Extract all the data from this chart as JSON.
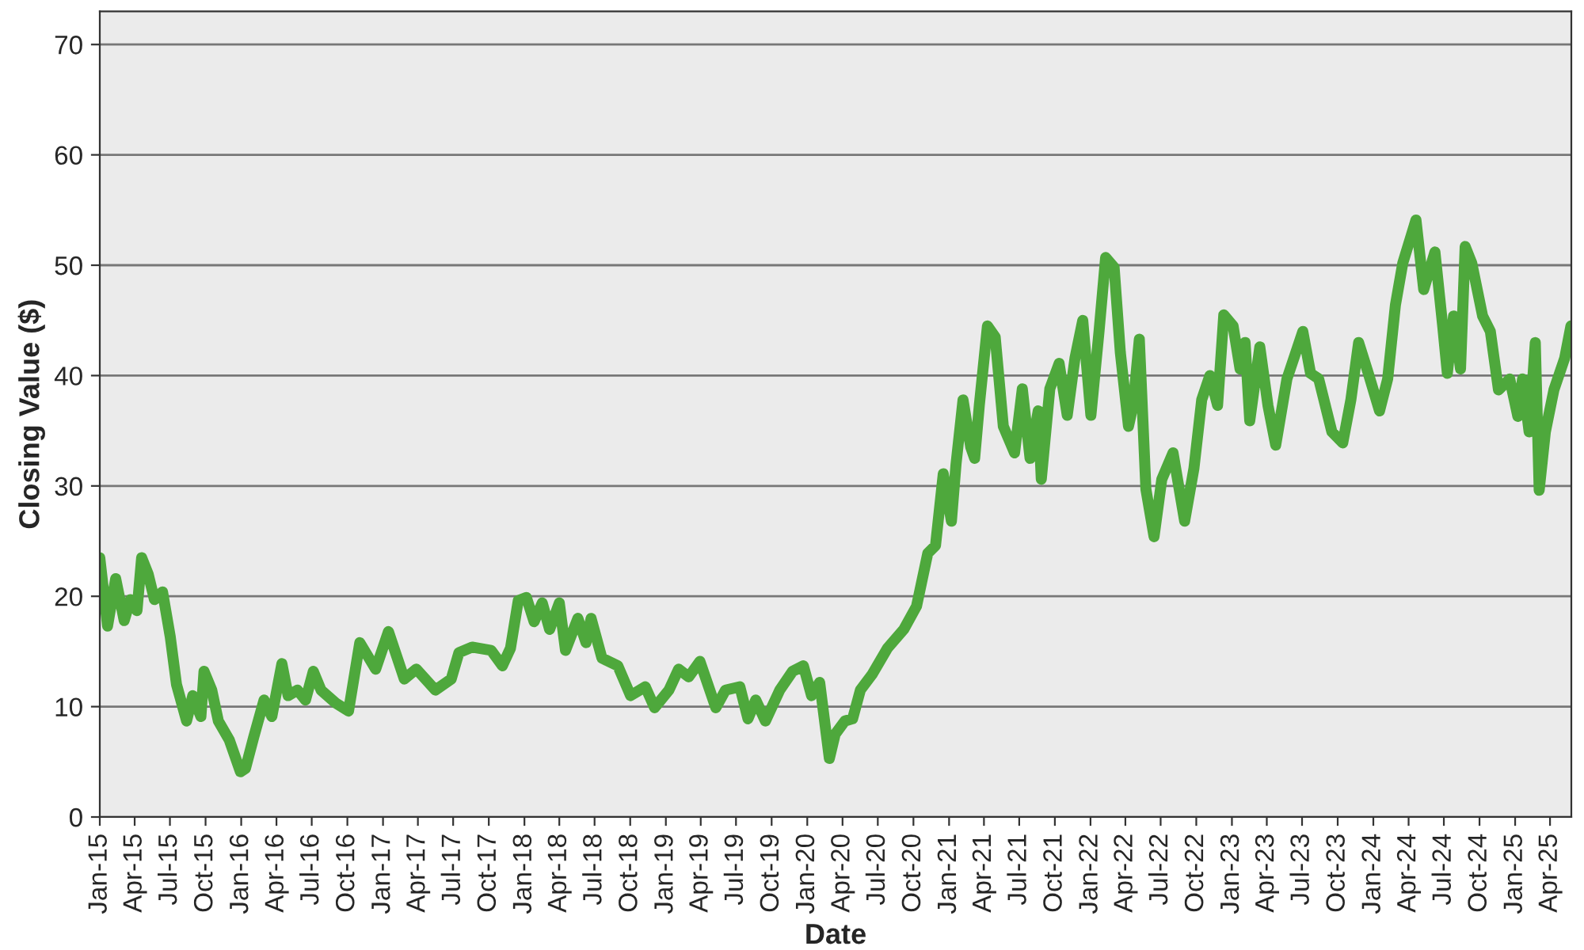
{
  "chart_data": {
    "type": "line",
    "xlabel": "Date",
    "ylabel": "Closing Value ($)",
    "x": [
      "2015-01-01",
      "2015-01-21",
      "2015-02-11",
      "2015-03-05",
      "2015-03-21",
      "2015-04-07",
      "2015-04-19",
      "2015-05-06",
      "2015-05-22",
      "2015-06-12",
      "2015-07-02",
      "2015-07-18",
      "2015-08-13",
      "2015-08-29",
      "2015-09-19",
      "2015-09-27",
      "2015-10-17",
      "2015-11-03",
      "2015-12-01",
      "2015-12-30",
      "2016-01-12",
      "2016-02-02",
      "2016-02-29",
      "2016-03-20",
      "2016-04-15",
      "2016-05-01",
      "2016-05-25",
      "2016-06-15",
      "2016-07-05",
      "2016-07-25",
      "2016-09-02",
      "2016-10-04",
      "2016-11-02",
      "2016-12-13",
      "2017-01-15",
      "2017-02-25",
      "2017-03-28",
      "2017-05-16",
      "2017-06-26",
      "2017-07-16",
      "2017-08-19",
      "2017-10-07",
      "2017-11-05",
      "2017-11-26",
      "2017-12-16",
      "2018-01-06",
      "2018-01-26",
      "2018-02-16",
      "2018-03-07",
      "2018-04-01",
      "2018-04-17",
      "2018-05-19",
      "2018-06-09",
      "2018-06-22",
      "2018-07-20",
      "2018-08-30",
      "2018-10-02",
      "2018-11-09",
      "2018-12-03",
      "2019-01-09",
      "2019-02-03",
      "2019-03-01",
      "2019-03-30",
      "2019-05-10",
      "2019-06-04",
      "2019-07-11",
      "2019-08-01",
      "2019-08-21",
      "2019-09-15",
      "2019-10-22",
      "2019-11-24",
      "2019-12-22",
      "2020-01-12",
      "2020-02-02",
      "2020-02-27",
      "2020-03-13",
      "2020-04-07",
      "2020-04-27",
      "2020-05-17",
      "2020-06-16",
      "2020-07-26",
      "2020-09-06",
      "2020-10-09",
      "2020-11-07",
      "2020-11-27",
      "2020-12-17",
      "2021-01-07",
      "2021-01-19",
      "2021-02-06",
      "2021-02-26",
      "2021-03-08",
      "2021-03-20",
      "2021-04-10",
      "2021-04-30",
      "2021-05-21",
      "2021-06-19",
      "2021-07-09",
      "2021-07-29",
      "2021-08-19",
      "2021-08-27",
      "2021-09-18",
      "2021-10-12",
      "2021-11-02",
      "2021-11-22",
      "2021-12-12",
      "2022-01-02",
      "2022-01-23",
      "2022-02-09",
      "2022-03-03",
      "2022-03-19",
      "2022-04-09",
      "2022-04-21",
      "2022-05-07",
      "2022-05-24",
      "2022-06-14",
      "2022-07-04",
      "2022-08-02",
      "2022-09-01",
      "2022-09-25",
      "2022-10-15",
      "2022-11-05",
      "2022-11-25",
      "2022-12-11",
      "2023-01-04",
      "2023-01-22",
      "2023-02-04",
      "2023-02-16",
      "2023-03-14",
      "2023-04-04",
      "2023-04-24",
      "2023-05-23",
      "2023-07-03",
      "2023-07-23",
      "2023-08-13",
      "2023-09-16",
      "2023-10-14",
      "2023-11-04",
      "2023-11-24",
      "2023-12-19",
      "2024-01-17",
      "2024-02-07",
      "2024-02-27",
      "2024-03-17",
      "2024-04-20",
      "2024-05-10",
      "2024-06-08",
      "2024-06-28",
      "2024-07-10",
      "2024-07-26",
      "2024-08-13",
      "2024-08-25",
      "2024-09-11",
      "2024-10-09",
      "2024-10-29",
      "2024-11-19",
      "2024-12-18",
      "2025-01-08",
      "2025-01-20",
      "2025-02-06",
      "2025-02-22",
      "2025-03-04",
      "2025-03-20",
      "2025-04-11",
      "2025-05-09",
      "2025-05-25"
    ],
    "series": [
      {
        "color": "#4ea83c",
        "values": [
          23.5,
          17.3,
          21.6,
          17.8,
          19.7,
          18.7,
          23.5,
          22,
          19.7,
          20.4,
          16.3,
          12,
          8.7,
          11,
          9.1,
          13.2,
          11.5,
          8.7,
          7,
          4.1,
          4.4,
          7.2,
          10.6,
          9.1,
          13.9,
          11,
          11.5,
          10.6,
          13.2,
          11.5,
          10.3,
          9.6,
          15.8,
          13.4,
          16.8,
          12.5,
          13.4,
          11.5,
          12.5,
          14.9,
          15.4,
          15.1,
          13.7,
          15.3,
          19.6,
          19.9,
          17.7,
          19.4,
          17,
          19.4,
          15.1,
          18,
          15.8,
          18,
          14.4,
          13.7,
          11,
          11.8,
          9.9,
          11.5,
          13.4,
          12.7,
          14.1,
          9.9,
          11.5,
          11.8,
          8.9,
          10.6,
          8.7,
          11.5,
          13.2,
          13.7,
          11,
          12.2,
          5.3,
          7.5,
          8.7,
          8.9,
          11.5,
          12.9,
          15.3,
          17,
          19.1,
          23.9,
          24.6,
          31.1,
          26.8,
          32,
          37.8,
          33.5,
          32.5,
          37.3,
          44.5,
          43.5,
          35.4,
          33,
          38.8,
          32.5,
          36.8,
          30.6,
          38.8,
          41.1,
          36.4,
          41.6,
          45,
          36.4,
          44,
          50.7,
          49.8,
          42.1,
          35.4,
          37.3,
          43.3,
          29.7,
          25.4,
          30.6,
          33,
          26.8,
          31.6,
          37.8,
          40,
          37.3,
          45.5,
          44.5,
          40.6,
          43,
          35.9,
          42.6,
          37.3,
          33.7,
          39.7,
          44,
          40.2,
          39.7,
          34.9,
          33.9,
          37.8,
          43,
          40.2,
          36.8,
          39.7,
          46.4,
          50.2,
          54.1,
          47.8,
          51.2,
          44.5,
          40.2,
          45.4,
          40.6,
          51.7,
          50.2,
          45.4,
          44,
          38.7,
          39.7,
          36.3,
          39.7,
          34.9,
          43,
          29.6,
          34.9,
          38.7,
          41.6,
          44.5
        ]
      }
    ],
    "xlim": [
      "2015-01-01",
      "2025-05-26"
    ],
    "xticks": [
      {
        "value": "2015-01",
        "label": "Jan-15"
      },
      {
        "value": "2015-04",
        "label": "Apr-15"
      },
      {
        "value": "2015-07",
        "label": "Jul-15"
      },
      {
        "value": "2015-10",
        "label": "Oct-15"
      },
      {
        "value": "2016-01",
        "label": "Jan-16"
      },
      {
        "value": "2016-04",
        "label": "Apr-16"
      },
      {
        "value": "2016-07",
        "label": "Jul-16"
      },
      {
        "value": "2016-10",
        "label": "Oct-16"
      },
      {
        "value": "2017-01",
        "label": "Jan-17"
      },
      {
        "value": "2017-04",
        "label": "Apr-17"
      },
      {
        "value": "2017-07",
        "label": "Jul-17"
      },
      {
        "value": "2017-10",
        "label": "Oct-17"
      },
      {
        "value": "2018-01",
        "label": "Jan-18"
      },
      {
        "value": "2018-04",
        "label": "Apr-18"
      },
      {
        "value": "2018-07",
        "label": "Jul-18"
      },
      {
        "value": "2018-10",
        "label": "Oct-18"
      },
      {
        "value": "2019-01",
        "label": "Jan-19"
      },
      {
        "value": "2019-04",
        "label": "Apr-19"
      },
      {
        "value": "2019-07",
        "label": "Jul-19"
      },
      {
        "value": "2019-10",
        "label": "Oct-19"
      },
      {
        "value": "2020-01",
        "label": "Jan-20"
      },
      {
        "value": "2020-04",
        "label": "Apr-20"
      },
      {
        "value": "2020-07",
        "label": "Jul-20"
      },
      {
        "value": "2020-10",
        "label": "Oct-20"
      },
      {
        "value": "2021-01",
        "label": "Jan-21"
      },
      {
        "value": "2021-04",
        "label": "Apr-21"
      },
      {
        "value": "2021-07",
        "label": "Jul-21"
      },
      {
        "value": "2021-10",
        "label": "Oct-21"
      },
      {
        "value": "2022-01",
        "label": "Jan-22"
      },
      {
        "value": "2022-04",
        "label": "Apr-22"
      },
      {
        "value": "2022-07",
        "label": "Jul-22"
      },
      {
        "value": "2022-10",
        "label": "Oct-22"
      },
      {
        "value": "2023-01",
        "label": "Jan-23"
      },
      {
        "value": "2023-04",
        "label": "Apr-23"
      },
      {
        "value": "2023-07",
        "label": "Jul-23"
      },
      {
        "value": "2023-10",
        "label": "Oct-23"
      },
      {
        "value": "2024-01",
        "label": "Jan-24"
      },
      {
        "value": "2024-04",
        "label": "Apr-24"
      },
      {
        "value": "2024-07",
        "label": "Jul-24"
      },
      {
        "value": "2024-10",
        "label": "Oct-24"
      },
      {
        "value": "2025-01",
        "label": "Jan-25"
      },
      {
        "value": "2025-04",
        "label": "Apr-25"
      }
    ],
    "ylim": [
      0,
      73
    ],
    "yticks": [
      0,
      10,
      20,
      30,
      40,
      50,
      60,
      70
    ],
    "grid": "y",
    "legend": false,
    "marker": "none",
    "line_style": "solid"
  }
}
